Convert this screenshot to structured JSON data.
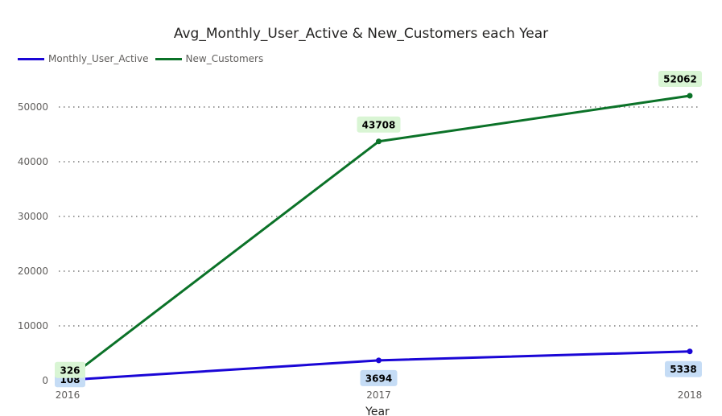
{
  "chart_data": {
    "type": "line",
    "title": "Avg_Monthly_User_Active & New_Customers each Year",
    "xlabel": "Year",
    "ylabel": "",
    "categories": [
      "2016",
      "2017",
      "2018"
    ],
    "ylim": [
      0,
      55000
    ],
    "yticks": [
      0,
      10000,
      20000,
      30000,
      40000,
      50000
    ],
    "grid": true,
    "legend_position": "top-left",
    "series": [
      {
        "name": "Monthly_User_Active",
        "color": "#1a06d6",
        "label_bg": "#c5dcf5",
        "values": [
          108,
          3694,
          5338
        ]
      },
      {
        "name": "New_Customers",
        "color": "#0b7228",
        "label_bg": "#d9f5d4",
        "values": [
          326,
          43708,
          52062
        ]
      }
    ]
  }
}
